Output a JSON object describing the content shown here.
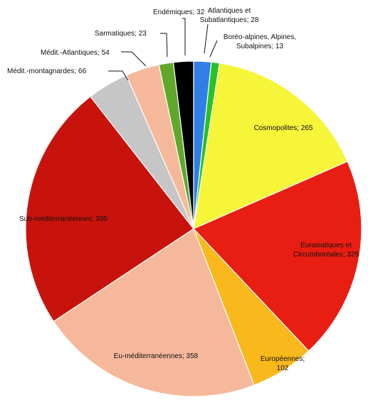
{
  "chart_data": {
    "type": "pie",
    "title": "",
    "slices": [
      {
        "label": "Atlantiques et Subatlantiques",
        "value": 28,
        "color": "#2f7fe6",
        "label_lines": [
          "Atlantiques et",
          "Subatlantiques; 28"
        ]
      },
      {
        "label": "Boréo-alpines, Alpines, Subalpines",
        "value": 13,
        "color": "#27c227",
        "label_lines": [
          "Boréo-alpines, Alpines,",
          "Subalpines; 13"
        ]
      },
      {
        "label": "Cosmopolites",
        "value": 265,
        "color": "#f6f53a",
        "label_lines": [
          "Cosmopolites; 265"
        ]
      },
      {
        "label": "Eurasiatiques et Circumboréales",
        "value": 325,
        "color": "#e81e12",
        "label_lines": [
          "Eurasiatiques et",
          "Circumboréales; 325"
        ]
      },
      {
        "label": "Européennes",
        "value": 102,
        "color": "#f9b91c",
        "label_lines": [
          "Européennes;",
          "102"
        ]
      },
      {
        "label": "Eu-méditerranéennes",
        "value": 358,
        "color": "#f6b89a",
        "label_lines": [
          "Eu-méditerranéennes; 358"
        ]
      },
      {
        "label": "Sub-méditerranéennes",
        "value": 395,
        "color": "#c8130c",
        "label_lines": [
          "Sub-méditerranéennes; 395"
        ]
      },
      {
        "label": "Médit.-montagnardes",
        "value": 66,
        "color": "#c6c6c6",
        "label_lines": [
          "Médit.-montagnardes; 66"
        ]
      },
      {
        "label": "Médit.-Atlantiques",
        "value": 54,
        "color": "#f6b89a",
        "label_lines": [
          "Médit.-Atlantiques; 54"
        ]
      },
      {
        "label": "Sarmatiques",
        "value": 23,
        "color": "#5fa82a",
        "label_lines": [
          "Sarmatiques; 23"
        ]
      },
      {
        "label": "Endémiques",
        "value": 32,
        "color": "#000000",
        "label_lines": [
          "Endémiques; 32"
        ]
      }
    ]
  }
}
